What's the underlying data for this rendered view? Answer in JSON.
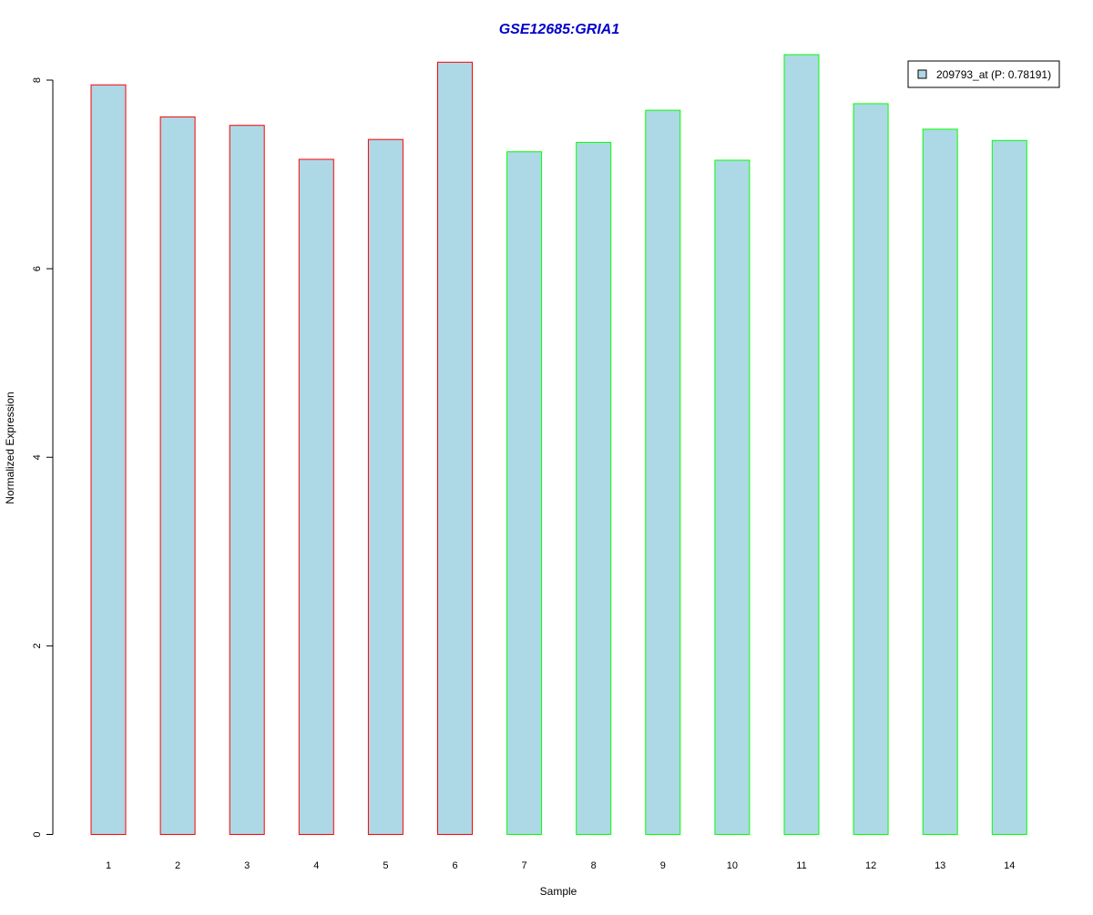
{
  "chart_data": {
    "type": "bar",
    "title": "GSE12685:GRIA1",
    "xlabel": "Sample",
    "ylabel": "Normalized Expression",
    "categories": [
      "1",
      "2",
      "3",
      "4",
      "5",
      "6",
      "7",
      "8",
      "9",
      "10",
      "11",
      "12",
      "13",
      "14"
    ],
    "values": [
      7.95,
      7.61,
      7.52,
      7.16,
      7.37,
      8.19,
      7.24,
      7.34,
      7.68,
      7.15,
      8.27,
      7.75,
      7.48,
      7.36
    ],
    "ylim": [
      0,
      8.4
    ],
    "yticks": [
      0,
      2,
      4,
      6,
      8
    ],
    "legend": {
      "label": "209793_at (P: 0.78191)",
      "placement": "top-right",
      "swatch_color": "#add8e6"
    },
    "colors": {
      "title": "#0000cc",
      "bar_fill": "#add8e6",
      "group1_border": "#ff0000",
      "group2_border": "#00ff00"
    },
    "border_groups": [
      "group1",
      "group1",
      "group1",
      "group1",
      "group1",
      "group1",
      "group2",
      "group2",
      "group2",
      "group2",
      "group2",
      "group2",
      "group2",
      "group2"
    ],
    "grid": false
  }
}
